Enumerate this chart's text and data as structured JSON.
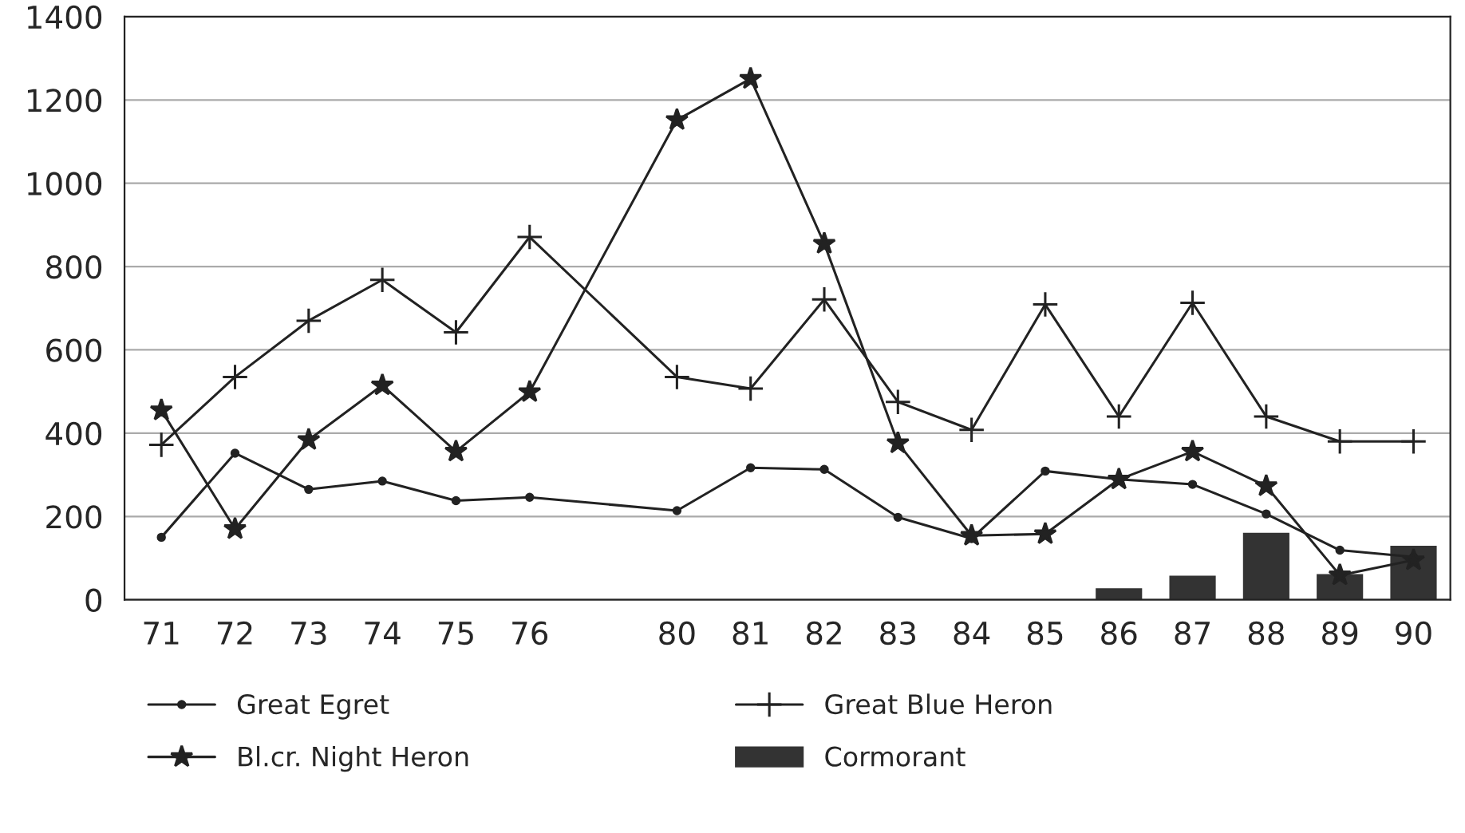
{
  "chart_data": {
    "type": "line",
    "categories": [
      "71",
      "72",
      "73",
      "74",
      "75",
      "76",
      null,
      "80",
      "81",
      "82",
      "83",
      "84",
      "85",
      "86",
      "87",
      "88",
      "89",
      "90"
    ],
    "series": [
      {
        "name": "Great Egret",
        "marker": "circle",
        "color": "#222222",
        "values": [
          150,
          352,
          265,
          285,
          238,
          246,
          null,
          214,
          317,
          313,
          198,
          147,
          309,
          289,
          277,
          206,
          119,
          103
        ]
      },
      {
        "name": "Bl.cr. Night Heron",
        "marker": "star",
        "color": "#222222",
        "values": [
          455,
          170,
          384,
          515,
          356,
          499,
          null,
          1152,
          1251,
          855,
          376,
          154,
          158,
          289,
          356,
          273,
          59,
          95
        ]
      },
      {
        "name": "Great Blue Heron",
        "marker": "cross",
        "color": "#222222",
        "values": [
          372,
          535,
          670,
          768,
          642,
          871,
          null,
          535,
          507,
          721,
          475,
          408,
          709,
          440,
          713,
          440,
          380,
          380
        ]
      },
      {
        "name": "Cormorant",
        "type": "bar",
        "color": "#333333",
        "values": [
          null,
          null,
          null,
          null,
          null,
          null,
          null,
          null,
          null,
          null,
          null,
          null,
          null,
          25,
          55,
          158,
          59,
          127
        ]
      }
    ],
    "ylim": [
      0,
      1400
    ],
    "yticks": [
      0,
      200,
      400,
      600,
      800,
      1000,
      1200,
      1400
    ],
    "grid": "y",
    "legend": "bottom"
  }
}
